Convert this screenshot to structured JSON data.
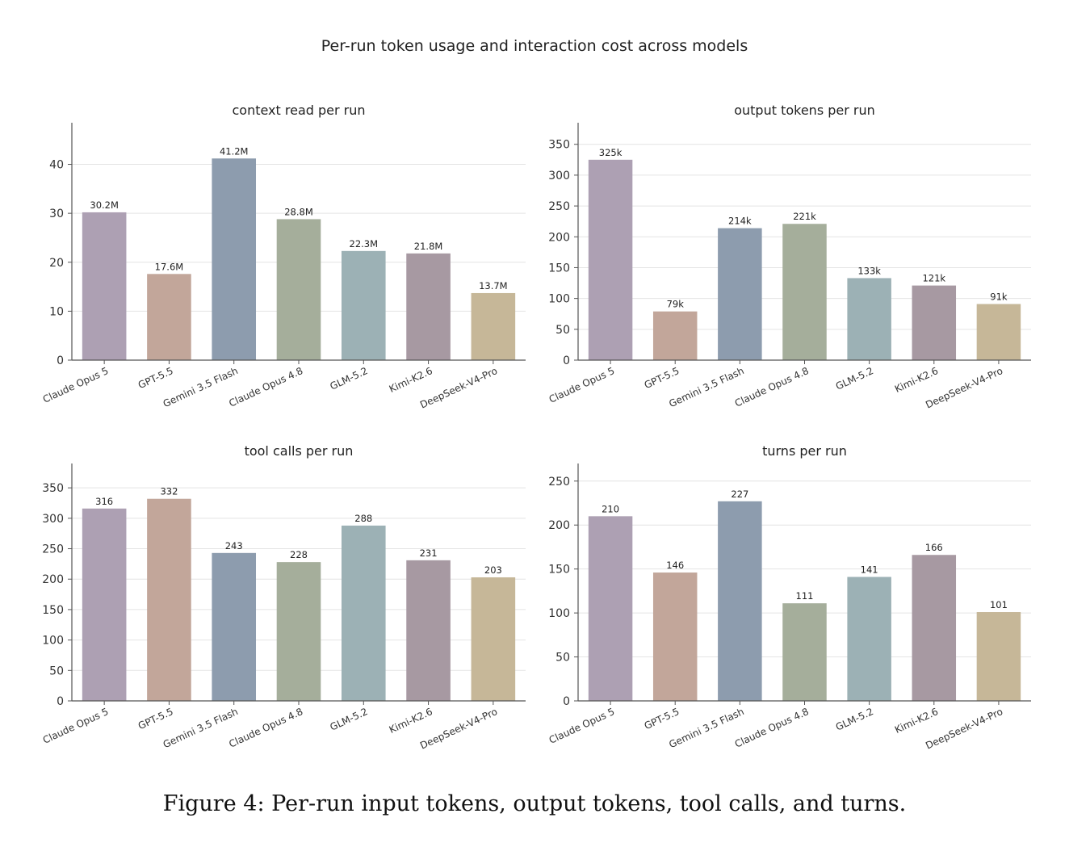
{
  "suptitle": "Per-run token usage and interaction cost across models",
  "caption": "Figure 4: Per-run input tokens, output tokens, tool calls, and turns.",
  "colors": [
    "#ada0b3",
    "#c2a69a",
    "#8d9cae",
    "#a5ae9b",
    "#9cb1b5",
    "#a799a2",
    "#c6b798"
  ],
  "chart_data": [
    {
      "type": "bar",
      "title": "context read per run",
      "categories": [
        "Claude Opus 5",
        "GPT-5.5",
        "Gemini 3.5 Flash",
        "Claude Opus 4.8",
        "GLM-5.2",
        "Kimi-K2.6",
        "DeepSeek-V4-Pro"
      ],
      "values": [
        30.2,
        17.6,
        41.2,
        28.8,
        22.3,
        21.8,
        13.7
      ],
      "data_labels": [
        "30.2M",
        "17.6M",
        "41.2M",
        "28.8M",
        "22.3M",
        "21.8M",
        "13.7M"
      ],
      "ylim": [
        0,
        48.5
      ],
      "yticks": [
        0,
        10,
        20,
        30,
        40
      ],
      "grid": true
    },
    {
      "type": "bar",
      "title": "output tokens per run",
      "categories": [
        "Claude Opus 5",
        "GPT-5.5",
        "Gemini 3.5 Flash",
        "Claude Opus 4.8",
        "GLM-5.2",
        "Kimi-K2.6",
        "DeepSeek-V4-Pro"
      ],
      "values": [
        325,
        79,
        214,
        221,
        133,
        121,
        91
      ],
      "data_labels": [
        "325k",
        "79k",
        "214k",
        "221k",
        "133k",
        "121k",
        "91k"
      ],
      "ylim": [
        0,
        385
      ],
      "yticks": [
        0,
        50,
        100,
        150,
        200,
        250,
        300,
        350
      ],
      "grid": true
    },
    {
      "type": "bar",
      "title": "tool calls per run",
      "categories": [
        "Claude Opus 5",
        "GPT-5.5",
        "Gemini 3.5 Flash",
        "Claude Opus 4.8",
        "GLM-5.2",
        "Kimi-K2.6",
        "DeepSeek-V4-Pro"
      ],
      "values": [
        316,
        332,
        243,
        228,
        288,
        231,
        203
      ],
      "data_labels": [
        "316",
        "332",
        "243",
        "228",
        "288",
        "231",
        "203"
      ],
      "ylim": [
        0,
        390
      ],
      "yticks": [
        0,
        50,
        100,
        150,
        200,
        250,
        300,
        350
      ],
      "grid": true
    },
    {
      "type": "bar",
      "title": "turns per run",
      "categories": [
        "Claude Opus 5",
        "GPT-5.5",
        "Gemini 3.5 Flash",
        "Claude Opus 4.8",
        "GLM-5.2",
        "Kimi-K2.6",
        "DeepSeek-V4-Pro"
      ],
      "values": [
        210,
        146,
        227,
        111,
        141,
        166,
        101
      ],
      "data_labels": [
        "210",
        "146",
        "227",
        "111",
        "141",
        "166",
        "101"
      ],
      "ylim": [
        0,
        270
      ],
      "yticks": [
        0,
        50,
        100,
        150,
        200,
        250
      ],
      "grid": true
    }
  ]
}
